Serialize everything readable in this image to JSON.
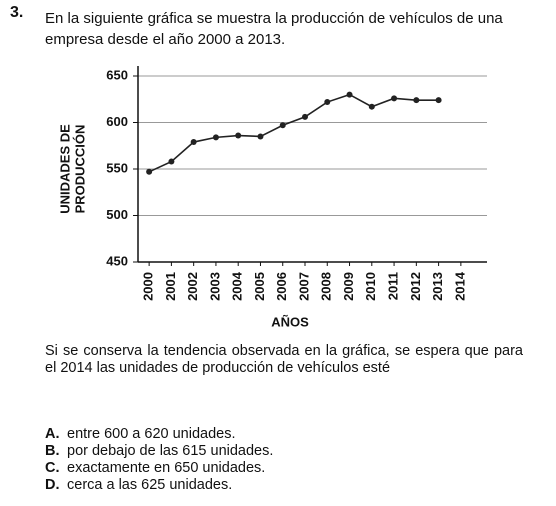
{
  "number": "3.",
  "intro": "En la siguiente gráfica se muestra la producción de vehículos de una empresa desde el año 2000 a 2013.",
  "chart_data": {
    "type": "line",
    "x_label": "AÑOS",
    "y_label": [
      "UNIDADES DE",
      "PRODUCCIÓN"
    ],
    "x": [
      2000,
      2001,
      2002,
      2003,
      2004,
      2005,
      2006,
      2007,
      2008,
      2009,
      2010,
      2011,
      2012,
      2013,
      2014
    ],
    "values": [
      547,
      558,
      579,
      584,
      586,
      585,
      597,
      606,
      622,
      630,
      617,
      626,
      624,
      624,
      null
    ],
    "color": "#222222",
    "xlim": [
      1999.5,
      2014.5
    ],
    "ylim": [
      450,
      650
    ],
    "yticks": [
      450,
      500,
      550,
      600,
      650
    ],
    "grid": true
  },
  "question": "Si se conserva la tendencia observada en la gráfica, se espera que para el 2014 las unidades de producción de vehículos esté",
  "options": [
    {
      "letter": "A.",
      "text": "entre 600 a 620 unidades."
    },
    {
      "letter": "B.",
      "text": "por debajo de las 615 unidades."
    },
    {
      "letter": "C.",
      "text": "exactamente en 650 unidades."
    },
    {
      "letter": "D.",
      "text": "cerca a las 625 unidades."
    }
  ]
}
